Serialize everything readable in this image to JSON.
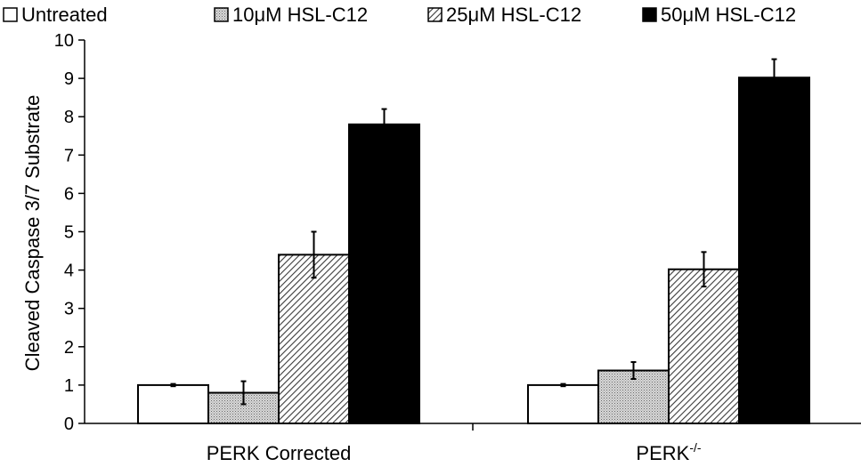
{
  "chart_data": {
    "type": "bar",
    "title": "",
    "xlabel": "",
    "ylabel": "Cleaved Caspase 3/7 Substrate",
    "ylim": [
      0,
      10
    ],
    "yticks": [
      "0",
      "1",
      "2",
      "3",
      "4",
      "5",
      "6",
      "7",
      "8",
      "9",
      "10"
    ],
    "grid": false,
    "legend_position": "top",
    "categories": [
      {
        "label": "PERK Corrected",
        "sup": ""
      },
      {
        "label": "PERK",
        "sup": "-/-"
      }
    ],
    "series": [
      {
        "name": "Untreated",
        "fill": "white",
        "values": [
          1.0,
          1.0
        ],
        "errors": [
          0.03,
          0.03
        ]
      },
      {
        "name": "10μM HSL-C12",
        "fill": "stipple",
        "values": [
          0.8,
          1.38
        ],
        "errors": [
          0.3,
          0.22
        ]
      },
      {
        "name": "25μM HSL-C12",
        "fill": "hatch",
        "values": [
          4.4,
          4.02
        ],
        "errors": [
          0.6,
          0.45
        ]
      },
      {
        "name": "50μM HSL-C12",
        "fill": "black",
        "values": [
          7.8,
          9.02
        ],
        "errors": [
          0.4,
          0.48
        ]
      }
    ]
  }
}
